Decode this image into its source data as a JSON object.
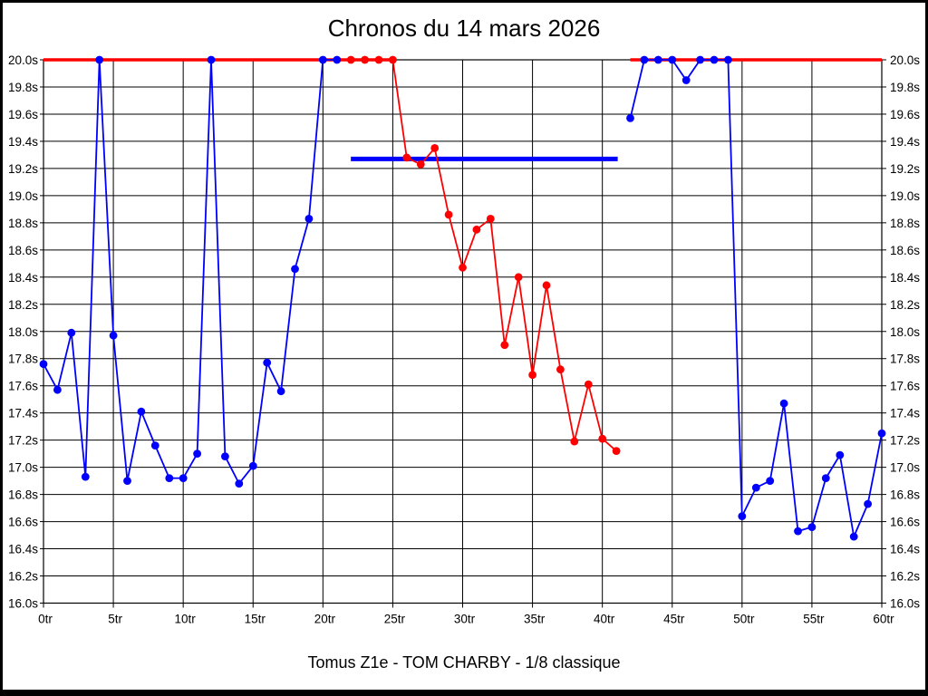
{
  "header": {
    "title": "Chronos du 14 mars 2026"
  },
  "footer": {
    "subtitle": "Tomus Z1e - TOM CHARBY - 1/8 classique"
  },
  "colors": {
    "blue": "#0000ff",
    "red": "#ff0000",
    "grid": "#000000",
    "background": "#ffffff"
  },
  "chart_data": {
    "type": "line",
    "title": "Chronos du 14 mars 2026",
    "subtitle": "Tomus Z1e - TOM CHARBY - 1/8 classique",
    "x_unit": "tr",
    "y_unit": "s",
    "xlim": [
      0,
      60
    ],
    "ylim": [
      16.0,
      20.0
    ],
    "grid": true,
    "x_ticks": [
      0,
      5,
      10,
      15,
      20,
      25,
      30,
      35,
      40,
      45,
      50,
      55,
      60
    ],
    "x_tick_labels": [
      "0tr",
      "5tr",
      "10tr",
      "15tr",
      "20tr",
      "25tr",
      "30tr",
      "35tr",
      "40tr",
      "45tr",
      "50tr",
      "55tr",
      "60tr"
    ],
    "y_ticks": [
      20.0,
      19.8,
      19.6,
      19.4,
      19.2,
      19.0,
      18.8,
      18.6,
      18.4,
      18.2,
      18.0,
      17.8,
      17.6,
      17.4,
      17.2,
      17.0,
      16.8,
      16.6,
      16.4,
      16.2,
      16.0
    ],
    "y_tick_labels": [
      "20.0s",
      "19.8s",
      "19.6s",
      "19.4s",
      "19.2s",
      "19.0s",
      "18.8s",
      "18.6s",
      "18.4s",
      "18.2s",
      "18.0s",
      "17.8s",
      "17.6s",
      "17.4s",
      "17.2s",
      "17.0s",
      "16.8s",
      "16.6s",
      "16.4s",
      "16.2s",
      "16.0s"
    ],
    "series": [
      {
        "name": "chrono-bleu-debut",
        "color": "#0000ff",
        "marker": "circle",
        "x": [
          0,
          1,
          2,
          3,
          4,
          5,
          6,
          7,
          8,
          9,
          10,
          11,
          12,
          13,
          14,
          15,
          16,
          17,
          18,
          19,
          20,
          21
        ],
        "y": [
          17.76,
          17.57,
          17.99,
          16.93,
          20.0,
          17.97,
          16.9,
          17.41,
          17.16,
          16.92,
          16.92,
          17.1,
          20.0,
          17.08,
          16.88,
          17.01,
          17.77,
          17.56,
          18.46,
          18.83,
          20.0,
          20.0
        ]
      },
      {
        "name": "chrono-rouge",
        "color": "#ff0000",
        "marker": "circle",
        "x": [
          22,
          23,
          24,
          25,
          26,
          27,
          28,
          29,
          30,
          31,
          32,
          33,
          34,
          35,
          36,
          37,
          38,
          39,
          40,
          41
        ],
        "y": [
          20.0,
          20.0,
          20.0,
          20.0,
          19.28,
          19.23,
          19.35,
          18.86,
          18.47,
          18.75,
          18.83,
          17.9,
          18.4,
          17.68,
          18.34,
          17.72,
          17.19,
          17.61,
          17.21,
          17.12
        ]
      },
      {
        "name": "chrono-bleu-fin",
        "color": "#0000ff",
        "marker": "circle",
        "x": [
          42,
          43,
          44,
          45,
          46,
          47,
          48,
          49,
          50,
          51,
          52,
          53,
          54,
          55,
          56,
          57,
          58,
          59,
          60
        ],
        "y": [
          19.57,
          20.0,
          20.0,
          20.0,
          19.85,
          20.0,
          20.0,
          20.0,
          16.64,
          16.85,
          16.9,
          17.47,
          16.53,
          16.56,
          16.92,
          17.09,
          16.49,
          16.73,
          17.25
        ]
      }
    ],
    "reference_lines": [
      {
        "name": "plafond-rouge-gauche",
        "color": "#ff0000",
        "y": 20.0,
        "x_start": 0,
        "x_end": 25,
        "stroke_width": 3.5
      },
      {
        "name": "plafond-rouge-droite",
        "color": "#ff0000",
        "y": 20.0,
        "x_start": 42,
        "x_end": 60,
        "stroke_width": 3.5
      },
      {
        "name": "ligne-bleue-horizontale",
        "color": "#0000ff",
        "y": 19.27,
        "x_start": 22,
        "x_end": 41.1,
        "stroke_width": 5
      }
    ],
    "legend": null
  }
}
